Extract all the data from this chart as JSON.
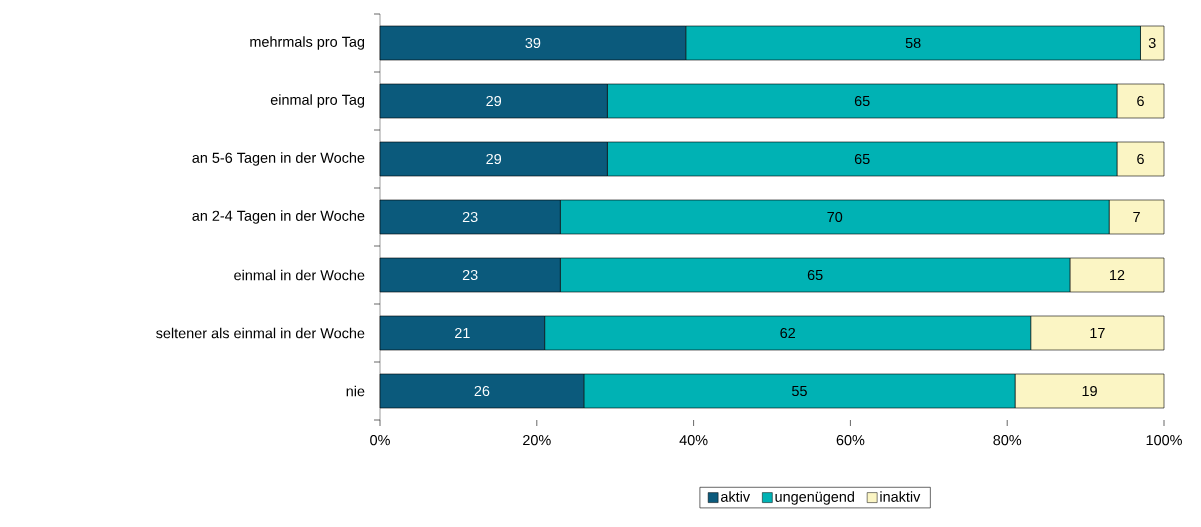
{
  "chart_data": {
    "type": "bar",
    "orientation": "horizontal",
    "stacked": true,
    "data_labels": true,
    "legend": "bottom",
    "grid": false,
    "categories": [
      "mehrmals pro Tag",
      "einmal pro Tag",
      "an 5-6 Tagen in der Woche",
      "an 2-4 Tagen in der Woche",
      "einmal in der Woche",
      "seltener als einmal in der Woche",
      "nie"
    ],
    "series": [
      {
        "name": "aktiv",
        "color": "#0b5a7c",
        "values": [
          39,
          29,
          29,
          23,
          23,
          21,
          26
        ]
      },
      {
        "name": "ungenügend",
        "color": "#00b2b4",
        "values": [
          58,
          65,
          65,
          70,
          65,
          62,
          55
        ]
      },
      {
        "name": "inaktiv",
        "color": "#fbf5c4",
        "values": [
          3,
          6,
          6,
          7,
          12,
          17,
          19
        ]
      }
    ],
    "xlim": [
      0,
      100
    ],
    "xticks": [
      {
        "value": 0,
        "label": "0%"
      },
      {
        "value": 20,
        "label": "20%"
      },
      {
        "value": 40,
        "label": "40%"
      },
      {
        "value": 60,
        "label": "60%"
      },
      {
        "value": 80,
        "label": "80%"
      },
      {
        "value": 100,
        "label": "100%"
      }
    ]
  }
}
